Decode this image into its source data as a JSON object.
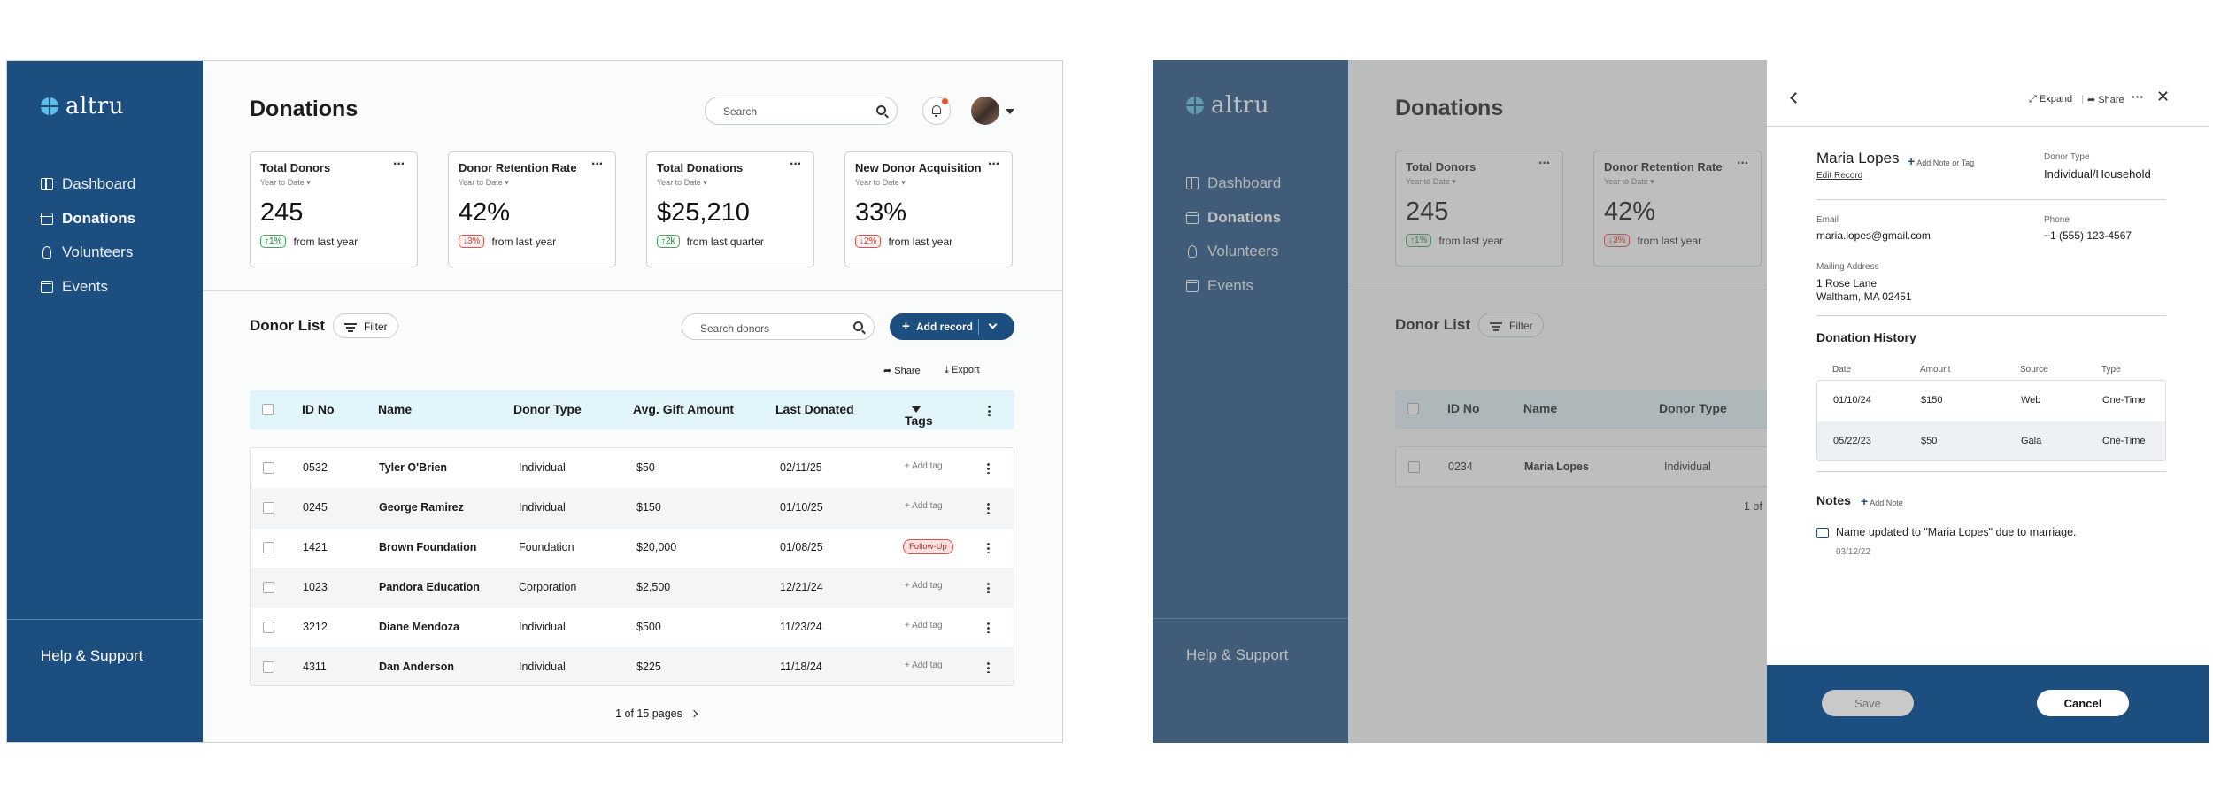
{
  "app": {
    "logo_text": "altru"
  },
  "sidebar": {
    "items": [
      {
        "label": "Dashboard",
        "icon": "dashboard-icon"
      },
      {
        "label": "Donations",
        "icon": "donations-icon",
        "active": true
      },
      {
        "label": "Volunteers",
        "icon": "volunteers-icon"
      },
      {
        "label": "Events",
        "icon": "calendar-icon"
      }
    ],
    "help": "Help & Support"
  },
  "header": {
    "title": "Donations",
    "search_placeholder": "Search",
    "notification_dot_color": "#e8572a"
  },
  "kpis": [
    {
      "title": "Total Donors",
      "period": "Year to Date",
      "value": "245",
      "change": "1%",
      "direction": "up",
      "compare": "from last year"
    },
    {
      "title": "Donor Retention Rate",
      "period": "Year to Date",
      "value": "42%",
      "change": "3%",
      "direction": "down",
      "compare": "from last year"
    },
    {
      "title": "Total Donations",
      "period": "Year to Date",
      "value": "$25,210",
      "change": "2k",
      "direction": "up",
      "compare": "from last quarter"
    },
    {
      "title": "New Donor Acquisition",
      "period": "Year to Date",
      "value": "33%",
      "change": "2%",
      "direction": "down",
      "compare": "from last year"
    }
  ],
  "list": {
    "title": "Donor List",
    "filter_label": "Filter",
    "search_placeholder": "Search donors",
    "add_label": "Add record",
    "share_label": "Share",
    "export_label": "Export",
    "columns": [
      "ID No",
      "Name",
      "Donor Type",
      "Avg. Gift Amount",
      "Last Donated",
      "Tags"
    ],
    "rows": [
      {
        "id": "0532",
        "name": "Tyler O'Brien",
        "type": "Individual",
        "avg": "$50",
        "last": "02/11/25",
        "tag": "+ Add tag"
      },
      {
        "id": "0245",
        "name": "George Ramirez",
        "type": "Individual",
        "avg": "$150",
        "last": "01/10/25",
        "tag": "+ Add tag"
      },
      {
        "id": "1421",
        "name": "Brown Foundation",
        "type": "Foundation",
        "avg": "$20,000",
        "last": "01/08/25",
        "tag": "Follow-Up"
      },
      {
        "id": "1023",
        "name": "Pandora Education",
        "type": "Corporation",
        "avg": "$2,500",
        "last": "12/21/24",
        "tag": "+ Add tag"
      },
      {
        "id": "3212",
        "name": "Diane Mendoza",
        "type": "Individual",
        "avg": "$500",
        "last": "11/23/24",
        "tag": "+ Add tag"
      },
      {
        "id": "4311",
        "name": "Dan Anderson",
        "type": "Individual",
        "avg": "$225",
        "last": "11/18/24",
        "tag": "+ Add tag"
      }
    ],
    "pager": "1 of 15 pages"
  },
  "filtered": {
    "row": {
      "id": "0234",
      "name": "Maria Lopes",
      "type": "Individual"
    },
    "pager_partial": "1 of"
  },
  "panel": {
    "expand_label": "Expand",
    "share_label": "Share",
    "name": "Maria Lopes",
    "add_note_tag": "Add Note or Tag",
    "edit_record": "Edit Record",
    "donor_type_label": "Donor Type",
    "donor_type_value": "Individual/Household",
    "email_label": "Email",
    "email_value": "maria.lopes@gmail.com",
    "phone_label": "Phone",
    "phone_value": "+1 (555) 123-4567",
    "address_label": "Mailing Address",
    "address_line1": "1 Rose Lane",
    "address_line2": "Waltham, MA 02451",
    "history_title": "Donation History",
    "history_columns": [
      "Date",
      "Amount",
      "Source",
      "Type"
    ],
    "history_rows": [
      {
        "date": "01/10/24",
        "amount": "$150",
        "source": "Web",
        "type": "One-Time"
      },
      {
        "date": "05/22/23",
        "amount": "$50",
        "source": "Gala",
        "type": "One-Time"
      }
    ],
    "notes_title": "Notes",
    "add_note": "Add Note",
    "note_text": "Name updated to \"Maria Lopes\" due to marriage.",
    "note_date": "03/12/22",
    "save_label": "Save",
    "cancel_label": "Cancel"
  },
  "colors": {
    "brand": "#1d4e80",
    "accent": "#5bbde8",
    "table_header": "#e2f5fa",
    "up": "#2f7d47",
    "down": "#c0392b"
  }
}
